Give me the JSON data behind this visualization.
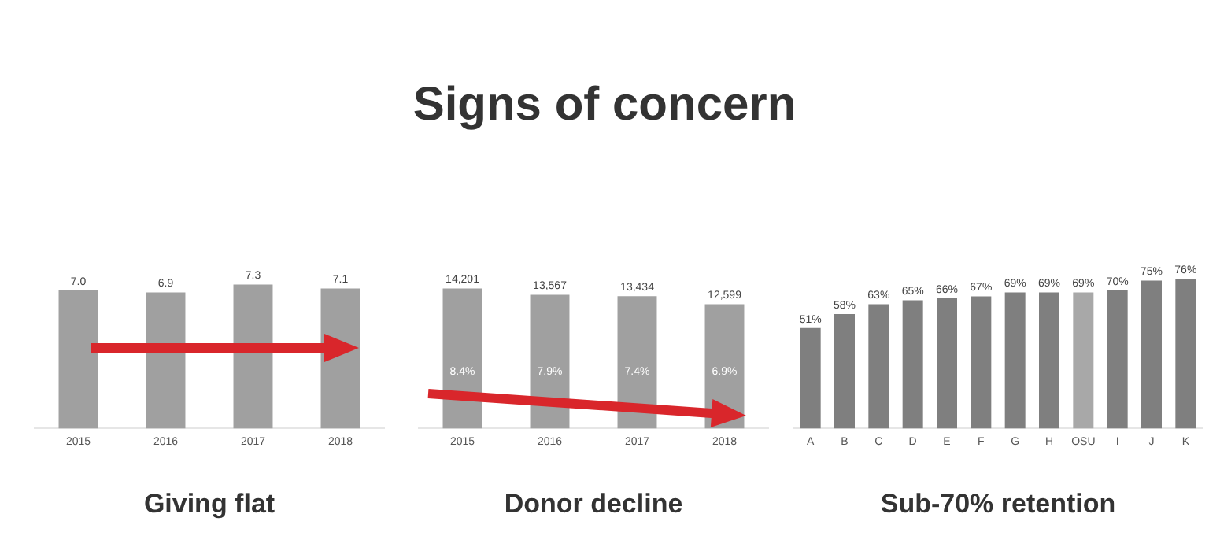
{
  "chart_data": [
    {
      "type": "other",
      "title": "Signs of concern"
    },
    {
      "type": "bar",
      "title": "Giving flat",
      "categories": [
        "2015",
        "2016",
        "2017",
        "2018"
      ],
      "values": [
        7.0,
        6.9,
        7.3,
        7.1
      ],
      "color": "#a0a0a0",
      "value_labels": [
        "7.0",
        "6.9",
        "7.3",
        "7.1"
      ],
      "grid": false,
      "legend": false,
      "tick_labels": "x"
    },
    {
      "type": "bar",
      "title": "Donor decline",
      "categories": [
        "2015",
        "2016",
        "2017",
        "2018"
      ],
      "values": [
        14201,
        13567,
        13434,
        12599
      ],
      "value_labels": [
        "14,201",
        "13,567",
        "13,434",
        "12,599"
      ],
      "color": "#a0a0a0",
      "grid": false,
      "legend": false,
      "tick_labels": "x",
      "annotations": [
        "8.4%",
        "7.9%",
        "7.4%",
        "6.9%"
      ]
    },
    {
      "type": "bar",
      "title": "Sub-70% retention",
      "categories": [
        "A",
        "B",
        "C",
        "D",
        "E",
        "F",
        "G",
        "H",
        "OSU",
        "I",
        "J",
        "K"
      ],
      "values": [
        51,
        58,
        63,
        65,
        66,
        67,
        69,
        69,
        69,
        70,
        75,
        76
      ],
      "value_labels": [
        "51%",
        "58%",
        "63%",
        "65%",
        "66%",
        "67%",
        "69%",
        "69%",
        "69%",
        "70%",
        "75%",
        "76%"
      ],
      "colors": [
        "#7f7f7f",
        "#7f7f7f",
        "#7f7f7f",
        "#7f7f7f",
        "#7f7f7f",
        "#7f7f7f",
        "#7f7f7f",
        "#7f7f7f",
        "#a8a8a8",
        "#7f7f7f",
        "#7f7f7f",
        "#7f7f7f"
      ],
      "grid": false,
      "legend": false,
      "tick_labels": "x"
    }
  ]
}
